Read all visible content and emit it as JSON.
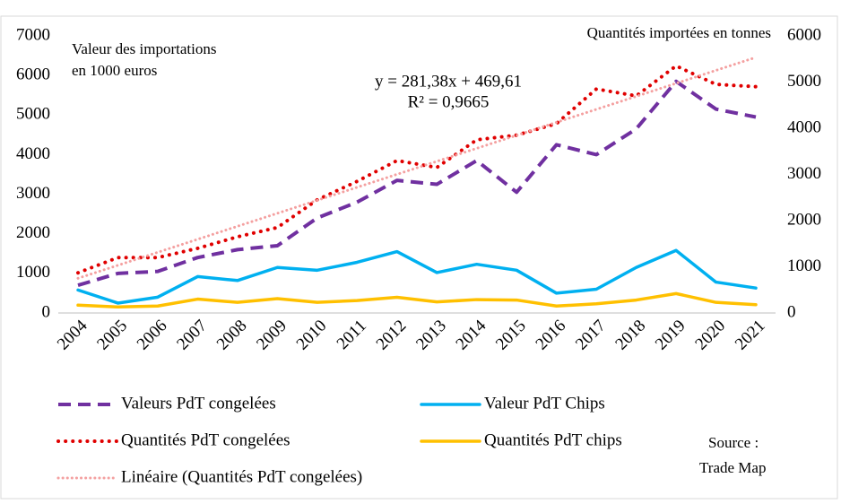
{
  "chart_data": {
    "type": "line",
    "y_label": [
      "Valeur des importations",
      "en 1000 euros"
    ],
    "y2_label": "Quantités importées en tonnes",
    "annotation": [
      "y = 281,38x + 469,61",
      "R² = 0,9665"
    ],
    "source": [
      "Source :",
      "Trade Map"
    ],
    "categories": [
      "2004",
      "2005",
      "2006",
      "2007",
      "2008",
      "2009",
      "2010",
      "2011",
      "2012",
      "2013",
      "2014",
      "2015",
      "2016",
      "2017",
      "2018",
      "2019",
      "2020",
      "2021"
    ],
    "ylim": [
      0,
      7000
    ],
    "yticks": [
      0,
      1000,
      2000,
      3000,
      4000,
      5000,
      6000,
      7000
    ],
    "y2lim": [
      0,
      6000
    ],
    "y2ticks": [
      0,
      1000,
      2000,
      3000,
      4000,
      5000,
      6000
    ],
    "series": [
      {
        "name": "Valeurs PdT congelées",
        "color": "#7030a0",
        "style": "dash",
        "values": [
          700,
          1000,
          1050,
          1400,
          1600,
          1700,
          2400,
          2800,
          3350,
          3250,
          3850,
          3050,
          4250,
          4000,
          4650,
          5850,
          5150,
          4950
        ]
      },
      {
        "name": "Valeur PdT Chips",
        "color": "#00b0f0",
        "style": "solid",
        "values": [
          580,
          250,
          400,
          920,
          820,
          1150,
          1080,
          1280,
          1550,
          1020,
          1230,
          1080,
          500,
          600,
          1150,
          1580,
          780,
          630
        ]
      },
      {
        "name": "Quantités PdT congelées",
        "color": "#e00000",
        "style": "dot",
        "axis": "y2",
        "values": [
          870,
          1200,
          1200,
          1400,
          1650,
          1850,
          2450,
          2850,
          3300,
          3150,
          3750,
          3850,
          4100,
          4850,
          4700,
          5350,
          4950,
          4900
        ]
      },
      {
        "name": "Quantités PdT chips",
        "color": "#ffc000",
        "style": "solid",
        "axis": "y2",
        "values": [
          170,
          130,
          150,
          300,
          230,
          310,
          230,
          270,
          340,
          240,
          290,
          280,
          150,
          200,
          280,
          420,
          230,
          180
        ]
      },
      {
        "name": "Linéaire (Quantités PdT congelées)",
        "color": "#f4a0a0",
        "style": "fine",
        "axis": "y2",
        "values": [
          751,
          1032,
          1314,
          1595,
          1877,
          2158,
          2439,
          2721,
          3002,
          3283,
          3565,
          3846,
          4128,
          4409,
          4690,
          4972,
          5253,
          5534
        ]
      }
    ]
  }
}
